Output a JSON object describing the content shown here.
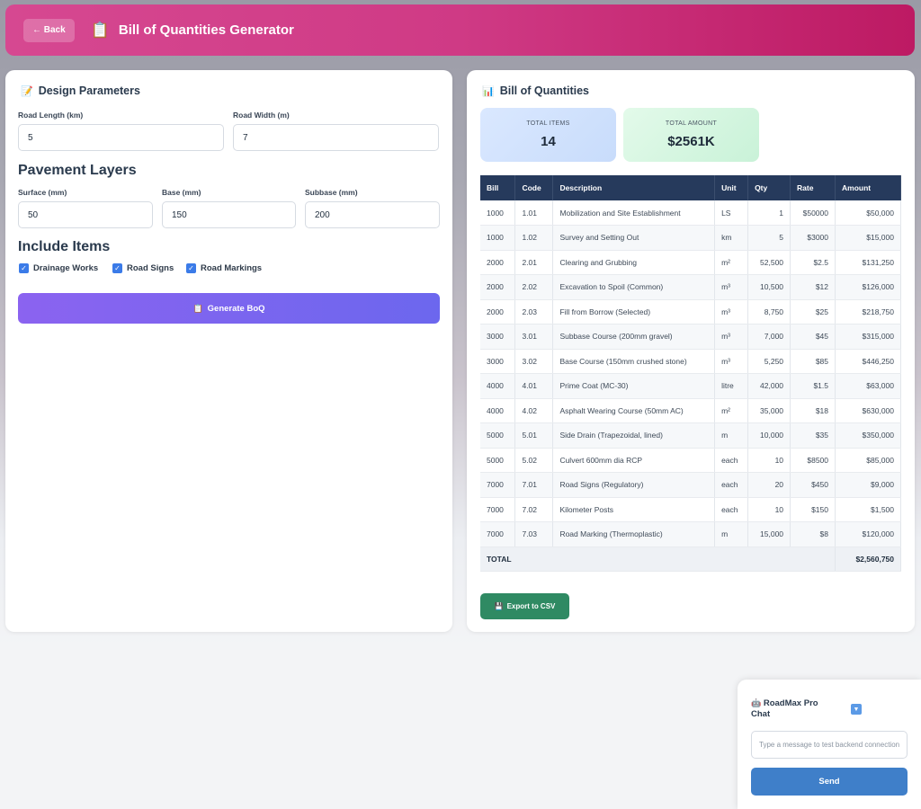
{
  "header": {
    "back_label": "← Back",
    "icon": "clipboard-icon",
    "title": "Bill of Quantities Generator"
  },
  "design": {
    "title": "Design Parameters",
    "title_icon": "memo-icon",
    "road_length": {
      "label": "Road Length (km)",
      "value": "5"
    },
    "road_width": {
      "label": "Road Width (m)",
      "value": "7"
    },
    "pavement_heading": "Pavement Layers",
    "surface": {
      "label": "Surface (mm)",
      "value": "50"
    },
    "base": {
      "label": "Base (mm)",
      "value": "150"
    },
    "subbase": {
      "label": "Subbase (mm)",
      "value": "200"
    },
    "include_heading": "Include Items",
    "items": [
      {
        "label": "Drainage Works",
        "checked": true
      },
      {
        "label": "Road Signs",
        "checked": true
      },
      {
        "label": "Road Markings",
        "checked": true
      }
    ],
    "generate_label": "Generate BoQ",
    "generate_icon": "clipboard-icon"
  },
  "boq": {
    "title": "Bill of Quantities",
    "title_icon": "bar-chart-icon",
    "total_items_label": "TOTAL ITEMS",
    "total_items": "14",
    "total_amount_label": "TOTAL AMOUNT",
    "total_amount": "$2561K",
    "columns": [
      "Bill",
      "Code",
      "Description",
      "Unit",
      "Qty",
      "Rate",
      "Amount"
    ],
    "rows": [
      [
        "1000",
        "1.01",
        "Mobilization and Site Establishment",
        "LS",
        "1",
        "$50000",
        "$50,000"
      ],
      [
        "1000",
        "1.02",
        "Survey and Setting Out",
        "km",
        "5",
        "$3000",
        "$15,000"
      ],
      [
        "2000",
        "2.01",
        "Clearing and Grubbing",
        "m²",
        "52,500",
        "$2.5",
        "$131,250"
      ],
      [
        "2000",
        "2.02",
        "Excavation to Spoil (Common)",
        "m³",
        "10,500",
        "$12",
        "$126,000"
      ],
      [
        "2000",
        "2.03",
        "Fill from Borrow (Selected)",
        "m³",
        "8,750",
        "$25",
        "$218,750"
      ],
      [
        "3000",
        "3.01",
        "Subbase Course (200mm gravel)",
        "m³",
        "7,000",
        "$45",
        "$315,000"
      ],
      [
        "3000",
        "3.02",
        "Base Course (150mm crushed stone)",
        "m³",
        "5,250",
        "$85",
        "$446,250"
      ],
      [
        "4000",
        "4.01",
        "Prime Coat (MC-30)",
        "litre",
        "42,000",
        "$1.5",
        "$63,000"
      ],
      [
        "4000",
        "4.02",
        "Asphalt Wearing Course (50mm AC)",
        "m²",
        "35,000",
        "$18",
        "$630,000"
      ],
      [
        "5000",
        "5.01",
        "Side Drain (Trapezoidal, lined)",
        "m",
        "10,000",
        "$35",
        "$350,000"
      ],
      [
        "5000",
        "5.02",
        "Culvert 600mm dia RCP",
        "each",
        "10",
        "$8500",
        "$85,000"
      ],
      [
        "7000",
        "7.01",
        "Road Signs (Regulatory)",
        "each",
        "20",
        "$450",
        "$9,000"
      ],
      [
        "7000",
        "7.02",
        "Kilometer Posts",
        "each",
        "10",
        "$150",
        "$1,500"
      ],
      [
        "7000",
        "7.03",
        "Road Marking (Thermoplastic)",
        "m",
        "15,000",
        "$8",
        "$120,000"
      ]
    ],
    "total_label": "TOTAL",
    "total_value": "$2,560,750",
    "export_label": "Export to CSV",
    "export_icon": "disk-icon"
  },
  "chat": {
    "title": "RoadMax Pro Chat",
    "icon": "robot-icon",
    "toggle_icon": "chevron-down-icon",
    "placeholder": "Type a message to test backend connection",
    "send_label": "Send"
  }
}
